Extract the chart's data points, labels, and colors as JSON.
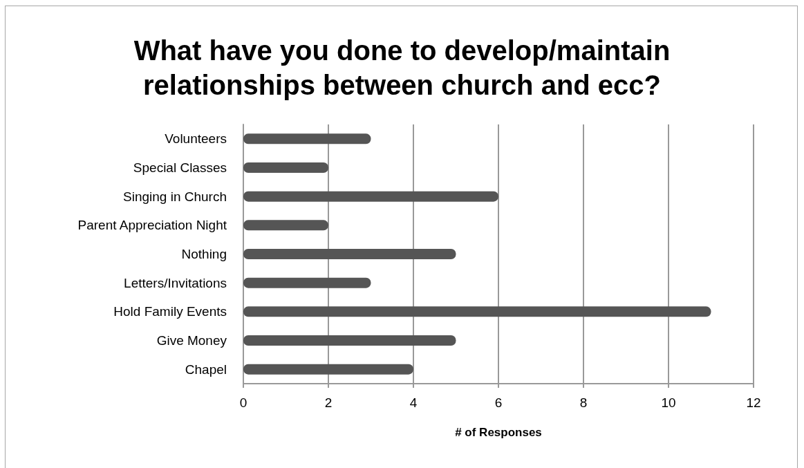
{
  "chart_data": {
    "type": "bar",
    "orientation": "horizontal",
    "title": "What have you done to develop/maintain relationships between church and ecc?",
    "categories": [
      "Volunteers",
      "Special Classes",
      "Singing in Church",
      "Parent Appreciation Night",
      "Nothing",
      "Letters/Invitations",
      "Hold Family Events",
      "Give Money",
      "Chapel"
    ],
    "values": [
      3,
      2,
      6,
      2,
      5,
      3,
      11,
      5,
      4
    ],
    "color": "#555555",
    "xlabel": "# of Responses",
    "xlim": [
      0,
      12
    ],
    "xticks": [
      0,
      2,
      4,
      6,
      8,
      10,
      12
    ],
    "grid": "x"
  }
}
